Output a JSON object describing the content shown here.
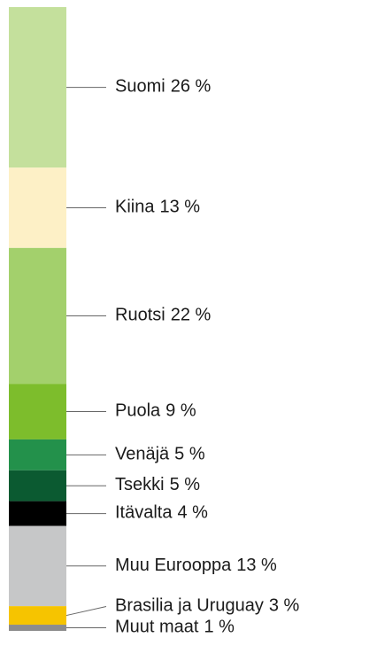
{
  "chart_data": {
    "type": "stacked-bar",
    "categories": [
      "Suomi",
      "Kiina",
      "Ruotsi",
      "Puola",
      "Venäjä",
      "Tsekki",
      "Itävalta",
      "Muu Eurooppa",
      "Brasilia ja Uruguay",
      "Muut maat"
    ],
    "values": [
      26,
      13,
      22,
      9,
      5,
      5,
      4,
      13,
      3,
      1
    ],
    "value_labels": [
      "26 %",
      "13 %",
      "22 %",
      "9 %",
      "5 %",
      "5 %",
      "4 %",
      "13 %",
      "3 %",
      "1 %"
    ],
    "colors": [
      "#c4e09c",
      "#fdf0c6",
      "#a3d06c",
      "#7dbd2c",
      "#23914b",
      "#0b5a31",
      "#000000",
      "#c6c7c8",
      "#f6c400",
      "#8c8c8c"
    ]
  }
}
